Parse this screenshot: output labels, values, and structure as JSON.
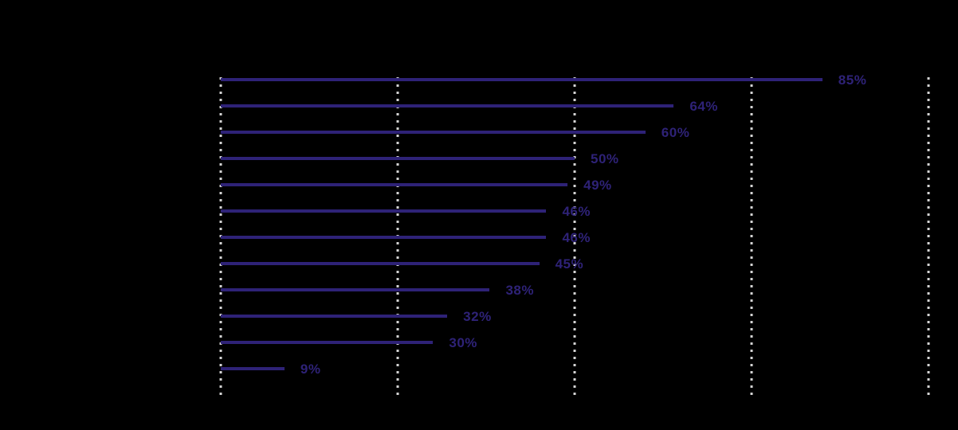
{
  "chart_data": {
    "type": "bar",
    "orientation": "horizontal",
    "values": [
      85,
      64,
      60,
      50,
      49,
      46,
      46,
      45,
      38,
      32,
      30,
      9
    ],
    "value_labels": [
      "85%",
      "64%",
      "60%",
      "50%",
      "49%",
      "46%",
      "46%",
      "45%",
      "38%",
      "32%",
      "30%",
      "9%"
    ],
    "xlim": [
      0,
      100
    ],
    "x_gridlines_pct": [
      0,
      25,
      50,
      75,
      100
    ],
    "grid_style": "dotted-vertical",
    "legend": "none",
    "data_labels": "outside-end"
  },
  "colors": {
    "background": "#000000",
    "bar": "#2e2277",
    "value_label": "#2e2277",
    "gridline": "#d4d4d4"
  }
}
